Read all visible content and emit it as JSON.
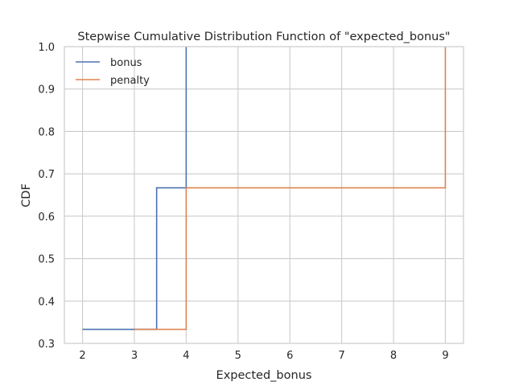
{
  "chart_data": {
    "type": "line",
    "step": true,
    "title": "Stepwise Cumulative Distribution Function of \"expected_bonus\"",
    "xlabel": "Expected_bonus",
    "ylabel": "CDF",
    "xlim": [
      1.65,
      9.35
    ],
    "ylim": [
      0.3,
      1.0
    ],
    "xticks": [
      2,
      3,
      4,
      5,
      6,
      7,
      8,
      9
    ],
    "yticks": [
      0.3,
      0.4,
      0.5,
      0.6,
      0.7,
      0.8,
      0.9,
      1.0
    ],
    "ytick_labels": [
      "0.3",
      "0.4",
      "0.5",
      "0.6",
      "0.7",
      "0.8",
      "0.9",
      "1.0"
    ],
    "grid": true,
    "legend_position": "top-left",
    "series": [
      {
        "name": "bonus",
        "color": "#4c72b0",
        "x": [
          2.0,
          3.43,
          4.0
        ],
        "y": [
          0.333,
          0.667,
          1.0
        ]
      },
      {
        "name": "penalty",
        "color": "#dd8452",
        "x": [
          3.0,
          4.0,
          9.0
        ],
        "y": [
          0.333,
          0.667,
          1.0
        ]
      }
    ]
  }
}
